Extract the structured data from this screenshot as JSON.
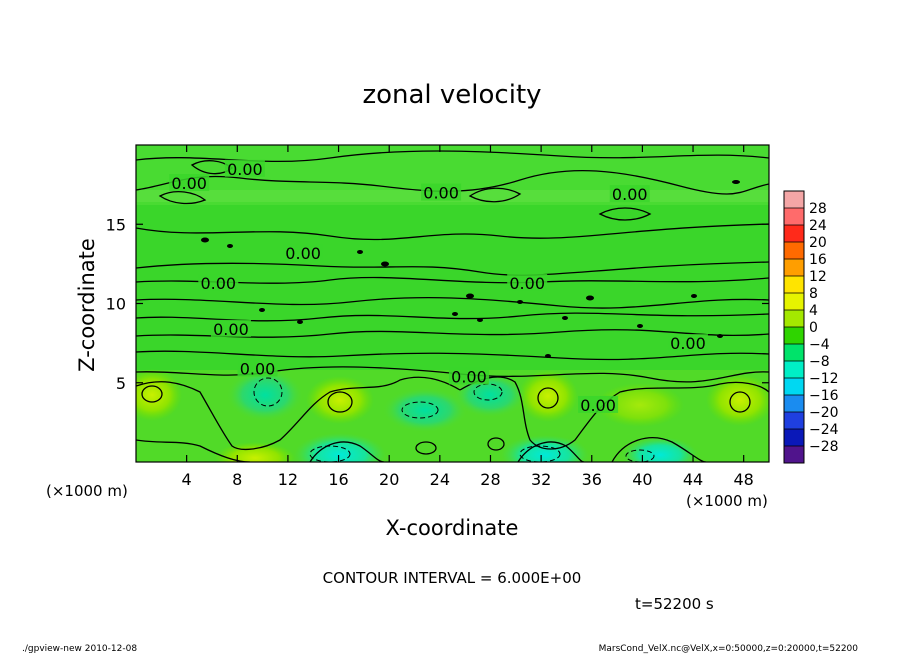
{
  "chart_data": {
    "type": "heatmap",
    "title": "zonal velocity",
    "xlabel": "X-coordinate",
    "ylabel": "Z-coordinate",
    "x_unit": "(×1000 m)",
    "y_unit": "(×1000 m)",
    "xlim": [
      0,
      50
    ],
    "ylim": [
      0,
      20
    ],
    "x_ticks": [
      4,
      8,
      12,
      16,
      20,
      24,
      28,
      32,
      36,
      40,
      44,
      48
    ],
    "y_ticks": [
      5,
      10,
      15
    ],
    "colorbar": {
      "levels": [
        -28,
        -24,
        -20,
        -16,
        -12,
        -8,
        -4,
        0,
        4,
        8,
        12,
        16,
        20,
        24,
        28
      ],
      "labels": [
        "28",
        "24",
        "20",
        "16",
        "12",
        "8",
        "4",
        "0",
        "−4",
        "−8",
        "−12",
        "−16",
        "−20",
        "−24",
        "−28"
      ],
      "colors": [
        "#f4a6a6",
        "#ff6b6b",
        "#ff2a1a",
        "#ff6a00",
        "#ff9e00",
        "#ffe400",
        "#e6f400",
        "#a4e800",
        "#2fd400",
        "#00e36a",
        "#00efc6",
        "#00d8f2",
        "#1a8cf0",
        "#1f3fe0",
        "#0a18b8",
        "#50148c"
      ]
    },
    "contour_labels": [
      {
        "text": "0.00",
        "x": 8.6,
        "z": 18.5
      },
      {
        "text": "0.00",
        "x": 4.2,
        "z": 17.6
      },
      {
        "text": "0.00",
        "x": 24.1,
        "z": 17.0
      },
      {
        "text": "0.00",
        "x": 39.0,
        "z": 16.9
      },
      {
        "text": "0.00",
        "x": 13.2,
        "z": 13.2
      },
      {
        "text": "0.00",
        "x": 6.5,
        "z": 11.3
      },
      {
        "text": "0.00",
        "x": 30.9,
        "z": 11.3
      },
      {
        "text": "0.00",
        "x": 7.5,
        "z": 8.4
      },
      {
        "text": "0.00",
        "x": 43.6,
        "z": 7.5
      },
      {
        "text": "0.00",
        "x": 9.6,
        "z": 5.9
      },
      {
        "text": "0.00",
        "x": 26.3,
        "z": 5.4
      },
      {
        "text": "0.00",
        "x": 36.5,
        "z": 3.6
      }
    ],
    "contour_interval": "CONTOUR INTERVAL = 6.000E+00",
    "time_label": "t=52200 s"
  },
  "footer": {
    "left": "./gpview-new  2010-12-08",
    "right": "MarsCond_VelX.nc@VelX,x=0:50000,z=0:20000,t=52200"
  }
}
